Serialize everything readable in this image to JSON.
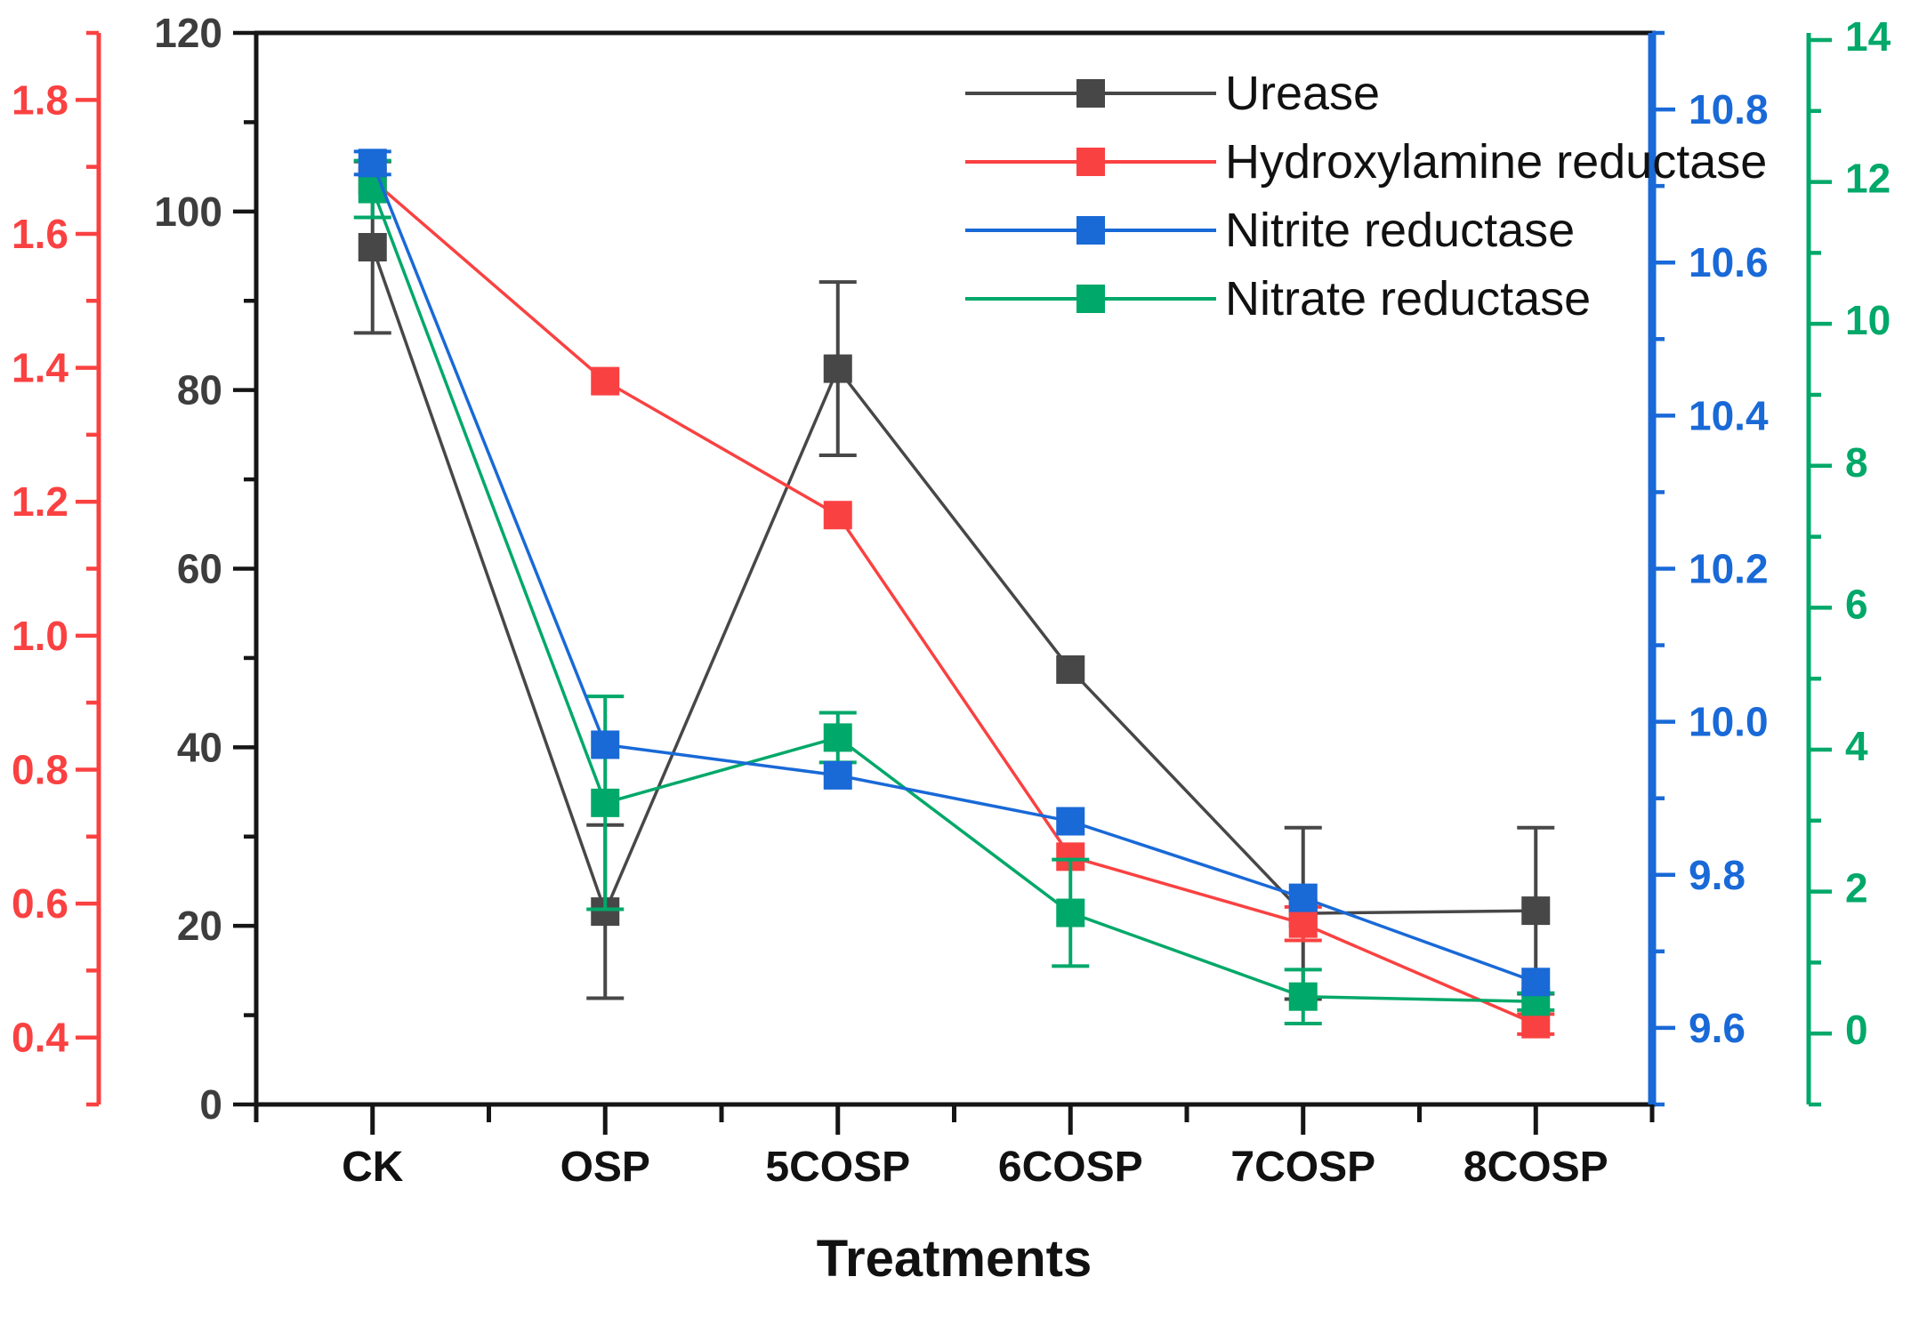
{
  "chart_data": {
    "type": "line",
    "title": "",
    "xlabel": "Treatments",
    "grid": false,
    "legend_position": "top-right-inside",
    "categories": [
      "CK",
      "OSP",
      "5COSP",
      "6COSP",
      "7COSP",
      "8COSP"
    ],
    "axes": [
      {
        "id": "urease",
        "side": "left",
        "position": "inner",
        "color": "#3d3d3d",
        "min": 0,
        "max": 120,
        "major_step": 20,
        "minor_step": 10,
        "tick_labels": [
          "0",
          "20",
          "40",
          "60",
          "80",
          "100",
          "120"
        ]
      },
      {
        "id": "hydroxylamine",
        "side": "left",
        "position": "outer",
        "color": "#fa4141",
        "min": 0.3,
        "max": 1.9,
        "major_step": 0.2,
        "minor_step": 0.1,
        "tick_labels": [
          "0.4",
          "0.6",
          "0.8",
          "1.0",
          "1.2",
          "1.4",
          "1.6",
          "1.8"
        ]
      },
      {
        "id": "nitrite",
        "side": "right",
        "position": "inner",
        "color": "#1969d7",
        "min": 9.5,
        "max": 10.9,
        "major_step": 0.2,
        "minor_step": 0.1,
        "tick_labels": [
          "9.6",
          "9.8",
          "10.0",
          "10.2",
          "10.4",
          "10.6",
          "10.8"
        ]
      },
      {
        "id": "nitrate",
        "side": "right",
        "position": "outer",
        "color": "#00a869",
        "min": -1.05,
        "max": 14.05,
        "major_step": 2,
        "minor_step": 1,
        "tick_labels": [
          "0",
          "2",
          "4",
          "6",
          "8",
          "10",
          "12",
          "14"
        ]
      }
    ],
    "series": [
      {
        "name": "Urease",
        "axis": "urease",
        "color": "#474747",
        "marker": "square",
        "values": [
          96,
          21.6,
          82.4,
          48.7,
          21.4,
          21.7
        ],
        "errors": [
          9.6,
          9.7,
          9.7,
          0,
          9.6,
          9.3
        ]
      },
      {
        "name": "Hydroxylamine reductase",
        "axis": "hydroxylamine",
        "color": "#fa4141",
        "marker": "square",
        "values": [
          1.68,
          1.38,
          1.18,
          0.67,
          0.57,
          0.42
        ],
        "errors": [
          0,
          0,
          0,
          0,
          0.025,
          0.015
        ]
      },
      {
        "name": "Nitrite reductase",
        "axis": "nitrite",
        "color": "#1969d7",
        "marker": "square",
        "values": [
          10.73,
          9.97,
          9.93,
          9.87,
          9.77,
          9.66
        ],
        "errors": [
          0.015,
          0,
          0,
          0,
          0,
          0
        ]
      },
      {
        "name": "Nitrate reductase",
        "axis": "nitrate",
        "color": "#00a869",
        "marker": "square",
        "values": [
          11.85,
          3.2,
          4.12,
          1.65,
          0.47,
          0.4
        ],
        "errors": [
          0.4,
          1.5,
          0.35,
          0.75,
          0.38,
          0.12
        ]
      }
    ]
  }
}
